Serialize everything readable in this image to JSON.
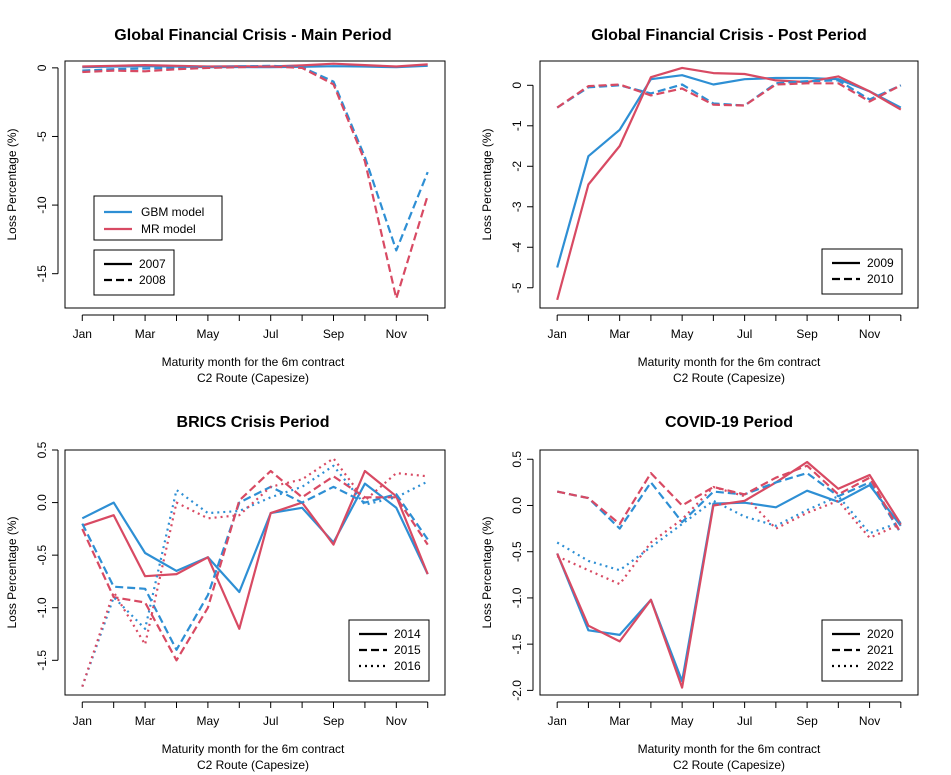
{
  "colors": {
    "gbm": "#2E8FD4",
    "mr": "#D84A63"
  },
  "chart_data": [
    {
      "type": "line",
      "title": "Global Financial Crisis - Main Period",
      "xlabel": [
        "Maturity month for the 6m contract",
        "C2 Route (Capesize)"
      ],
      "ylabel": "Loss Percentage (%)",
      "x_tick_labels": [
        "Jan",
        "Mar",
        "May",
        "Jul",
        "Sep",
        "Nov"
      ],
      "x_tick_positions": [
        1,
        3,
        5,
        7,
        9,
        11
      ],
      "xlim": [
        0.45,
        12.55
      ],
      "ylim": [
        -17.5,
        0.5
      ],
      "y_ticks": [
        0,
        -5,
        -10,
        -15
      ],
      "y_tick_labels": [
        "0",
        "-5",
        "-10",
        "-15"
      ],
      "legend_placement": "bottom-left",
      "legend_models": [
        {
          "label": "GBM model",
          "color": "gbm"
        },
        {
          "label": "MR model",
          "color": "mr"
        }
      ],
      "legend_years": [
        {
          "label": "2007",
          "dash": "solid"
        },
        {
          "label": "2008",
          "dash": "dashed"
        }
      ],
      "series": [
        {
          "model": "gbm",
          "year": "2007",
          "dash": "solid",
          "x": [
            1,
            2,
            3,
            4,
            5,
            6,
            7,
            8,
            9,
            10,
            11,
            12
          ],
          "y": [
            0.05,
            0.1,
            0.12,
            0.1,
            0.05,
            0.06,
            0.05,
            0.08,
            0.12,
            0.1,
            0.05,
            0.15
          ]
        },
        {
          "model": "mr",
          "year": "2007",
          "dash": "solid",
          "x": [
            1,
            2,
            3,
            4,
            5,
            6,
            7,
            8,
            9,
            10,
            11,
            12
          ],
          "y": [
            0.1,
            0.15,
            0.2,
            0.15,
            0.1,
            0.12,
            0.1,
            0.18,
            0.3,
            0.2,
            0.1,
            0.25
          ]
        },
        {
          "model": "gbm",
          "year": "2008",
          "dash": "dashed",
          "x": [
            1,
            2,
            3,
            4,
            5,
            6,
            7,
            8,
            9,
            10,
            11,
            12
          ],
          "y": [
            -0.2,
            -0.1,
            -0.05,
            0.0,
            0.05,
            0.1,
            0.15,
            0.05,
            -1.0,
            -6.5,
            -13.3,
            -7.6
          ]
        },
        {
          "model": "mr",
          "year": "2008",
          "dash": "dashed",
          "x": [
            1,
            2,
            3,
            4,
            5,
            6,
            7,
            8,
            9,
            10,
            11,
            12
          ],
          "y": [
            -0.3,
            -0.2,
            -0.25,
            -0.1,
            0.0,
            0.05,
            0.1,
            0.0,
            -1.2,
            -6.8,
            -16.8,
            -9.3
          ]
        }
      ]
    },
    {
      "type": "line",
      "title": "Global Financial Crisis - Post Period",
      "xlabel": [
        "Maturity month for the 6m contract",
        "C2 Route (Capesize)"
      ],
      "ylabel": "Loss Percentage (%)",
      "x_tick_labels": [
        "Jan",
        "Mar",
        "May",
        "Jul",
        "Sep",
        "Nov"
      ],
      "x_tick_positions": [
        1,
        3,
        5,
        7,
        9,
        11
      ],
      "xlim": [
        0.45,
        12.55
      ],
      "ylim": [
        -5.5,
        0.6
      ],
      "y_ticks": [
        0,
        -1,
        -2,
        -3,
        -4,
        -5
      ],
      "y_tick_labels": [
        "0",
        "-1",
        "-2",
        "-3",
        "-4",
        "-5"
      ],
      "legend_placement": "bottom-right",
      "legend_years": [
        {
          "label": "2009",
          "dash": "solid"
        },
        {
          "label": "2010",
          "dash": "dashed"
        }
      ],
      "series": [
        {
          "model": "gbm",
          "year": "2009",
          "dash": "solid",
          "x": [
            1,
            2,
            3,
            4,
            5,
            6,
            7,
            8,
            9,
            10,
            11,
            12
          ],
          "y": [
            -4.5,
            -1.75,
            -1.1,
            0.15,
            0.25,
            0.02,
            0.15,
            0.18,
            0.18,
            0.15,
            -0.15,
            -0.55
          ]
        },
        {
          "model": "mr",
          "year": "2009",
          "dash": "solid",
          "x": [
            1,
            2,
            3,
            4,
            5,
            6,
            7,
            8,
            9,
            10,
            11,
            12
          ],
          "y": [
            -5.3,
            -2.45,
            -1.5,
            0.2,
            0.43,
            0.3,
            0.28,
            0.12,
            0.08,
            0.22,
            -0.15,
            -0.6
          ]
        },
        {
          "model": "gbm",
          "year": "2010",
          "dash": "dashed",
          "x": [
            1,
            2,
            3,
            4,
            5,
            6,
            7,
            8,
            9,
            10,
            11,
            12
          ],
          "y": [
            -0.55,
            -0.05,
            0.0,
            -0.2,
            0.02,
            -0.45,
            -0.5,
            0.05,
            0.1,
            0.12,
            -0.35,
            0.0
          ]
        },
        {
          "model": "mr",
          "year": "2010",
          "dash": "dashed",
          "x": [
            1,
            2,
            3,
            4,
            5,
            6,
            7,
            8,
            9,
            10,
            11,
            12
          ],
          "y": [
            -0.55,
            -0.02,
            0.02,
            -0.25,
            -0.08,
            -0.48,
            -0.5,
            0.02,
            0.05,
            0.05,
            -0.4,
            0.0
          ]
        }
      ]
    },
    {
      "type": "line",
      "title": "BRICS Crisis Period",
      "xlabel": [
        "Maturity month for the 6m contract",
        "C2 Route (Capesize)"
      ],
      "ylabel": "Loss Percentage (%)",
      "x_tick_labels": [
        "Jan",
        "Mar",
        "May",
        "Jul",
        "Sep",
        "Nov"
      ],
      "x_tick_positions": [
        1,
        3,
        5,
        7,
        9,
        11
      ],
      "xlim": [
        0.45,
        12.55
      ],
      "ylim": [
        -1.83,
        0.5
      ],
      "y_ticks": [
        0.5,
        0.0,
        -0.5,
        -1.0,
        -1.5
      ],
      "y_tick_labels": [
        "0.5",
        "0.0",
        "-0.5",
        "-1.0",
        "-1.5"
      ],
      "legend_placement": "bottom-right",
      "legend_years": [
        {
          "label": "2014",
          "dash": "solid"
        },
        {
          "label": "2015",
          "dash": "dashed"
        },
        {
          "label": "2016",
          "dash": "dotted"
        }
      ],
      "series": [
        {
          "model": "gbm",
          "year": "2014",
          "dash": "solid",
          "x": [
            1,
            2,
            3,
            4,
            5,
            6,
            7,
            8,
            9,
            10,
            11,
            12
          ],
          "y": [
            -0.15,
            0.0,
            -0.48,
            -0.65,
            -0.52,
            -0.85,
            -0.1,
            -0.05,
            -0.38,
            0.18,
            -0.05,
            -0.68
          ]
        },
        {
          "model": "mr",
          "year": "2014",
          "dash": "solid",
          "x": [
            1,
            2,
            3,
            4,
            5,
            6,
            7,
            8,
            9,
            10,
            11,
            12
          ],
          "y": [
            -0.22,
            -0.12,
            -0.7,
            -0.68,
            -0.52,
            -1.2,
            -0.1,
            0.0,
            -0.4,
            0.3,
            0.06,
            -0.68
          ]
        },
        {
          "model": "gbm",
          "year": "2015",
          "dash": "dashed",
          "x": [
            1,
            2,
            3,
            4,
            5,
            6,
            7,
            8,
            9,
            10,
            11,
            12
          ],
          "y": [
            -0.2,
            -0.8,
            -0.82,
            -1.4,
            -0.88,
            0.0,
            0.15,
            0.0,
            0.15,
            0.0,
            0.08,
            -0.35
          ]
        },
        {
          "model": "mr",
          "year": "2015",
          "dash": "dashed",
          "x": [
            1,
            2,
            3,
            4,
            5,
            6,
            7,
            8,
            9,
            10,
            11,
            12
          ],
          "y": [
            -0.25,
            -0.9,
            -0.95,
            -1.5,
            -1.0,
            0.02,
            0.3,
            0.05,
            0.25,
            0.05,
            0.05,
            -0.4
          ]
        },
        {
          "model": "gbm",
          "year": "2016",
          "dash": "dotted",
          "x": [
            1,
            2,
            3,
            4,
            5,
            6,
            7,
            8,
            9,
            10,
            11,
            12
          ],
          "y": [
            -1.75,
            -0.9,
            -1.2,
            0.12,
            -0.1,
            -0.08,
            0.05,
            0.15,
            0.35,
            -0.02,
            0.05,
            0.2
          ]
        },
        {
          "model": "mr",
          "year": "2016",
          "dash": "dotted",
          "x": [
            1,
            2,
            3,
            4,
            5,
            6,
            7,
            8,
            9,
            10,
            11,
            12
          ],
          "y": [
            -1.75,
            -0.85,
            -1.35,
            0.0,
            -0.15,
            -0.12,
            0.15,
            0.22,
            0.42,
            0.02,
            0.28,
            0.25
          ]
        }
      ]
    },
    {
      "type": "line",
      "title": "COVID-19 Period",
      "xlabel": [
        "Maturity month for the 6m contract",
        "C2 Route (Capesize)"
      ],
      "ylabel": "Loss Percentage (%)",
      "x_tick_labels": [
        "Jan",
        "Mar",
        "May",
        "Jul",
        "Sep",
        "Nov"
      ],
      "x_tick_positions": [
        1,
        3,
        5,
        7,
        9,
        11
      ],
      "xlim": [
        0.45,
        12.55
      ],
      "ylim": [
        -2.05,
        0.6
      ],
      "y_ticks": [
        0.5,
        0.0,
        -0.5,
        -1.0,
        -1.5,
        -2.0
      ],
      "y_tick_labels": [
        "0.5",
        "0.0",
        "-0.5",
        "-1.0",
        "-1.5",
        "-2.0"
      ],
      "legend_placement": "bottom-right",
      "legend_years": [
        {
          "label": "2020",
          "dash": "solid"
        },
        {
          "label": "2021",
          "dash": "dashed"
        },
        {
          "label": "2022",
          "dash": "dotted"
        }
      ],
      "series": [
        {
          "model": "gbm",
          "year": "2020",
          "dash": "solid",
          "x": [
            1,
            2,
            3,
            4,
            5,
            6,
            7,
            8,
            9,
            10,
            11,
            12
          ],
          "y": [
            -0.52,
            -1.35,
            -1.4,
            -1.02,
            -1.9,
            0.02,
            0.03,
            -0.02,
            0.16,
            0.04,
            0.22,
            -0.22
          ]
        },
        {
          "model": "mr",
          "year": "2020",
          "dash": "solid",
          "x": [
            1,
            2,
            3,
            4,
            5,
            6,
            7,
            8,
            9,
            10,
            11,
            12
          ],
          "y": [
            -0.52,
            -1.3,
            -1.47,
            -1.02,
            -1.97,
            0.0,
            0.05,
            0.25,
            0.47,
            0.18,
            0.33,
            -0.2
          ]
        },
        {
          "model": "gbm",
          "year": "2021",
          "dash": "dashed",
          "x": [
            1,
            2,
            3,
            4,
            5,
            6,
            7,
            8,
            9,
            10,
            11,
            12
          ],
          "y": [
            0.15,
            0.08,
            -0.25,
            0.25,
            -0.18,
            0.15,
            0.12,
            0.25,
            0.35,
            0.1,
            0.25,
            -0.3
          ]
        },
        {
          "model": "mr",
          "year": "2021",
          "dash": "dashed",
          "x": [
            1,
            2,
            3,
            4,
            5,
            6,
            7,
            8,
            9,
            10,
            11,
            12
          ],
          "y": [
            0.15,
            0.08,
            -0.2,
            0.35,
            0.0,
            0.2,
            0.12,
            0.3,
            0.43,
            0.12,
            0.3,
            -0.3
          ]
        },
        {
          "model": "gbm",
          "year": "2022",
          "dash": "dotted",
          "x": [
            1,
            2,
            3,
            4,
            5,
            6,
            7,
            8,
            9,
            10,
            11,
            12
          ],
          "y": [
            -0.4,
            -0.6,
            -0.7,
            -0.45,
            -0.2,
            0.05,
            -0.12,
            -0.22,
            -0.05,
            0.1,
            -0.3,
            -0.18
          ]
        },
        {
          "model": "mr",
          "year": "2022",
          "dash": "dotted",
          "x": [
            1,
            2,
            3,
            4,
            5,
            6,
            7,
            8,
            9,
            10,
            11,
            12
          ],
          "y": [
            -0.55,
            -0.7,
            -0.85,
            -0.4,
            -0.15,
            0.2,
            0.1,
            -0.25,
            -0.08,
            0.05,
            -0.35,
            -0.2
          ]
        }
      ]
    }
  ]
}
